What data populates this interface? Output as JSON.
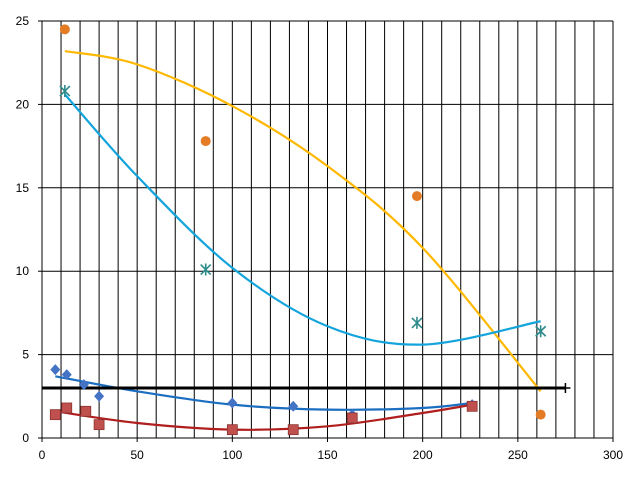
{
  "chart_data": {
    "type": "scatter",
    "title": "",
    "xlabel": "",
    "ylabel": "",
    "xlim": [
      0,
      300
    ],
    "ylim": [
      0,
      25
    ],
    "x_ticks": [
      0,
      50,
      100,
      150,
      200,
      250,
      300
    ],
    "y_ticks": [
      0,
      5,
      10,
      15,
      20,
      25
    ],
    "x_gridline_step": 10,
    "y_gridline_step": 5,
    "grid": true,
    "legend": "none",
    "series": [
      {
        "marker": "circle",
        "color": "#E47B25",
        "points": [
          [
            12,
            24.5
          ],
          [
            86,
            17.8
          ],
          [
            197,
            14.5
          ],
          [
            262,
            1.4
          ]
        ],
        "trend": {
          "color": "#FFB800",
          "x": [
            12,
            50,
            100,
            150,
            200,
            262
          ],
          "y": [
            23.2,
            22.4,
            19.9,
            16.3,
            11.4,
            2.8
          ]
        }
      },
      {
        "marker": "asterisk",
        "color": "#2E8B8B",
        "points": [
          [
            12,
            20.8
          ],
          [
            86,
            10.1
          ],
          [
            197,
            6.9
          ],
          [
            262,
            6.4
          ]
        ],
        "trend": {
          "color": "#14A4DC",
          "x": [
            12,
            50,
            100,
            150,
            200,
            262
          ],
          "y": [
            20.6,
            15.7,
            10.2,
            6.7,
            5.6,
            7.0
          ]
        }
      },
      {
        "marker": "diamond",
        "color": "#4472C4",
        "points": [
          [
            7,
            4.1
          ],
          [
            13,
            3.8
          ],
          [
            22,
            3.2
          ],
          [
            30,
            2.5
          ],
          [
            100,
            2.1
          ],
          [
            132,
            1.9
          ],
          [
            163,
            1.4
          ],
          [
            226,
            2.0
          ]
        ],
        "trend": {
          "color": "#1C6EC0",
          "x": [
            7,
            50,
            100,
            150,
            200,
            226
          ],
          "y": [
            3.7,
            2.8,
            2.0,
            1.7,
            1.8,
            2.1
          ]
        }
      },
      {
        "marker": "square",
        "color": "#C0504D",
        "points": [
          [
            7,
            1.4
          ],
          [
            13,
            1.8
          ],
          [
            23,
            1.6
          ],
          [
            30,
            0.8
          ],
          [
            100,
            0.5
          ],
          [
            132,
            0.5
          ],
          [
            163,
            1.2
          ],
          [
            226,
            1.9
          ]
        ],
        "trend": {
          "color": "#B01E1E",
          "x": [
            7,
            50,
            100,
            150,
            200,
            226
          ],
          "y": [
            1.6,
            0.9,
            0.5,
            0.7,
            1.5,
            2.0
          ]
        }
      }
    ],
    "reference_line": {
      "y": 3.0,
      "x_start": 0,
      "x_end": 275,
      "color": "#000000"
    }
  }
}
